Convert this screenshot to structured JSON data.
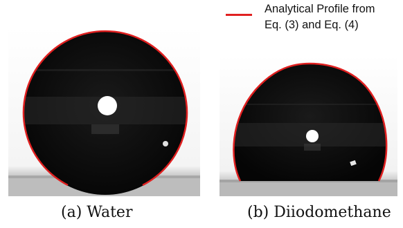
{
  "legend": {
    "line_1": "Analytical Profile from",
    "line_2": "Eq. (3) and Eq. (4)",
    "color": "#e02020"
  },
  "panels": [
    {
      "caption": "(a)  Water"
    },
    {
      "caption": "(b)  Diiodomethane"
    }
  ]
}
